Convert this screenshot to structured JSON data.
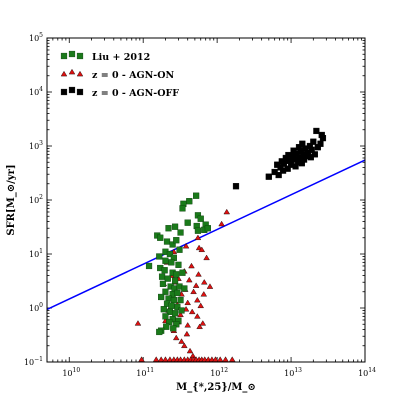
{
  "chart_data": {
    "type": "scatter",
    "xlabel": "M_{*,25}/M_⊙",
    "ylabel": "SFR[M_⊙/yr]",
    "xscale": "log",
    "yscale": "log",
    "xlim": [
      5000000000.0,
      100000000000000.0
    ],
    "ylim": [
      0.1,
      100000
    ],
    "grid": false,
    "legend": "top-left",
    "x_ticks": [
      {
        "value": 10000000000.0,
        "base": "10",
        "exp": "10"
      },
      {
        "value": 100000000000.0,
        "base": "10",
        "exp": "11"
      },
      {
        "value": 1000000000000.0,
        "base": "10",
        "exp": "12"
      },
      {
        "value": 10000000000000.0,
        "base": "10",
        "exp": "13"
      },
      {
        "value": 100000000000000.0,
        "base": "10",
        "exp": "14"
      }
    ],
    "y_ticks": [
      {
        "value": 0.1,
        "base": "10",
        "exp": "−1"
      },
      {
        "value": 1,
        "base": "10",
        "exp": "0"
      },
      {
        "value": 10,
        "base": "10",
        "exp": "1"
      },
      {
        "value": 100,
        "base": "10",
        "exp": "2"
      },
      {
        "value": 1000,
        "base": "10",
        "exp": "3"
      },
      {
        "value": 10000,
        "base": "10",
        "exp": "4"
      },
      {
        "value": 100000,
        "base": "10",
        "exp": "5"
      }
    ],
    "fit_line": {
      "color": "#0000ff",
      "points": [
        [
          5000000000.0,
          0.94
        ],
        [
          100000000000000.0,
          550
        ]
      ]
    },
    "series": [
      {
        "name": "Liu + 2012",
        "marker": "square",
        "color": "#1a7a1a",
        "points": [
          [
            520000000000.0,
            120
          ],
          [
            420000000000.0,
            95
          ],
          [
            350000000000.0,
            85
          ],
          [
            340000000000.0,
            70
          ],
          [
            550000000000.0,
            52
          ],
          [
            600000000000.0,
            45
          ],
          [
            400000000000.0,
            38
          ],
          [
            220000000000.0,
            30
          ],
          [
            270000000000.0,
            32
          ],
          [
            320000000000.0,
            25
          ],
          [
            530000000000.0,
            33
          ],
          [
            550000000000.0,
            27
          ],
          [
            700000000000.0,
            35
          ],
          [
            670000000000.0,
            28
          ],
          [
            750000000000.0,
            30
          ],
          [
            155000000000.0,
            22
          ],
          [
            170000000000.0,
            20
          ],
          [
            210000000000.0,
            17
          ],
          [
            250000000000.0,
            15
          ],
          [
            280000000000.0,
            18
          ],
          [
            310000000000.0,
            12
          ],
          [
            200000000000.0,
            11
          ],
          [
            230000000000.0,
            10
          ],
          [
            165000000000.0,
            9
          ],
          [
            260000000000.0,
            8.5
          ],
          [
            200000000000.0,
            7.5
          ],
          [
            240000000000.0,
            7
          ],
          [
            300000000000.0,
            6.3
          ],
          [
            170000000000.0,
            5.5
          ],
          [
            195000000000.0,
            5
          ],
          [
            250000000000.0,
            4.5
          ],
          [
            280000000000.0,
            4.2
          ],
          [
            340000000000.0,
            4.5
          ],
          [
            180000000000.0,
            3.8
          ],
          [
            215000000000.0,
            3.5
          ],
          [
            270000000000.0,
            3.2
          ],
          [
            185000000000.0,
            2.8
          ],
          [
            235000000000.0,
            2.5
          ],
          [
            265000000000.0,
            2.3
          ],
          [
            310000000000.0,
            2.5
          ],
          [
            360000000000.0,
            2.3
          ],
          [
            200000000000.0,
            2
          ],
          [
            250000000000.0,
            1.8
          ],
          [
            290000000000.0,
            1.9
          ],
          [
            175000000000.0,
            1.6
          ],
          [
            220000000000.0,
            1.5
          ],
          [
            260000000000.0,
            1.4
          ],
          [
            320000000000.0,
            1.4
          ],
          [
            210000000000.0,
            1.2
          ],
          [
            240000000000.0,
            1.1
          ],
          [
            290000000000.0,
            1.05
          ],
          [
            190000000000.0,
            0.95
          ],
          [
            230000000000.0,
            0.85
          ],
          [
            270000000000.0,
            0.8
          ],
          [
            330000000000.0,
            0.9
          ],
          [
            200000000000.0,
            0.7
          ],
          [
            250000000000.0,
            0.62
          ],
          [
            300000000000.0,
            0.58
          ],
          [
            225000000000.0,
            0.55
          ],
          [
            280000000000.0,
            0.5
          ],
          [
            205000000000.0,
            0.45
          ],
          [
            255000000000.0,
            0.42
          ],
          [
            175000000000.0,
            0.38
          ],
          [
            165000000000.0,
            0.36
          ],
          [
            120000000000.0,
            6.0
          ]
        ]
      },
      {
        "name": "z = 0 - AGN-ON",
        "marker": "triangle",
        "color": "#dd1111",
        "points": [
          [
            1350000000000.0,
            60
          ],
          [
            1150000000000.0,
            36
          ],
          [
            550000000000.0,
            20
          ],
          [
            380000000000.0,
            14
          ],
          [
            570000000000.0,
            13
          ],
          [
            620000000000.0,
            12
          ],
          [
            260000000000.0,
            11
          ],
          [
            720000000000.0,
            8.5
          ],
          [
            210000000000.0,
            7
          ],
          [
            450000000000.0,
            6
          ],
          [
            360000000000.0,
            4.8
          ],
          [
            560000000000.0,
            4.2
          ],
          [
            240000000000.0,
            4
          ],
          [
            300000000000.0,
            3.5
          ],
          [
            420000000000.0,
            3.3
          ],
          [
            670000000000.0,
            3.0
          ],
          [
            270000000000.0,
            3.0
          ],
          [
            190000000000.0,
            2.8
          ],
          [
            520000000000.0,
            2.6
          ],
          [
            800000000000.0,
            2.5
          ],
          [
            370000000000.0,
            2.2
          ],
          [
            480000000000.0,
            2.0
          ],
          [
            660000000000.0,
            1.8
          ],
          [
            330000000000.0,
            1.8
          ],
          [
            240000000000.0,
            1.6
          ],
          [
            540000000000.0,
            1.4
          ],
          [
            400000000000.0,
            1.25
          ],
          [
            290000000000.0,
            1.15
          ],
          [
            600000000000.0,
            1.1
          ],
          [
            380000000000.0,
            0.95
          ],
          [
            220000000000.0,
            0.9
          ],
          [
            460000000000.0,
            0.85
          ],
          [
            320000000000.0,
            0.75
          ],
          [
            540000000000.0,
            0.7
          ],
          [
            270000000000.0,
            0.62
          ],
          [
            200000000000.0,
            0.58
          ],
          [
            300000000000.0,
            0.55
          ],
          [
            640000000000.0,
            0.52
          ],
          [
            400000000000.0,
            0.48
          ],
          [
            580000000000.0,
            0.45
          ],
          [
            85000000000.0,
            0.52
          ],
          [
            260000000000.0,
            0.38
          ],
          [
            390000000000.0,
            0.33
          ],
          [
            280000000000.0,
            0.28
          ],
          [
            330000000000.0,
            0.24
          ],
          [
            360000000000.0,
            0.2
          ],
          [
            430000000000.0,
            0.16
          ],
          [
            470000000000.0,
            0.13
          ],
          [
            95000000000.0,
            0.1
          ],
          [
            150000000000.0,
            0.1
          ],
          [
            175000000000.0,
            0.1
          ],
          [
            200000000000.0,
            0.1
          ],
          [
            230000000000.0,
            0.1
          ],
          [
            260000000000.0,
            0.1
          ],
          [
            290000000000.0,
            0.1
          ],
          [
            320000000000.0,
            0.1
          ],
          [
            360000000000.0,
            0.1
          ],
          [
            400000000000.0,
            0.1
          ],
          [
            440000000000.0,
            0.1
          ],
          [
            480000000000.0,
            0.1
          ],
          [
            520000000000.0,
            0.1
          ],
          [
            570000000000.0,
            0.1
          ],
          [
            620000000000.0,
            0.1
          ],
          [
            680000000000.0,
            0.1
          ],
          [
            760000000000.0,
            0.1
          ],
          [
            850000000000.0,
            0.1
          ],
          [
            950000000000.0,
            0.1
          ],
          [
            1100000000000.0,
            0.1
          ],
          [
            1300000000000.0,
            0.1
          ],
          [
            1600000000000.0,
            0.1
          ]
        ]
      },
      {
        "name": "z = 0 - AGN-OFF",
        "marker": "square",
        "color": "#000000",
        "points": [
          [
            1800000000000.0,
            180
          ],
          [
            5000000000000.0,
            270
          ],
          [
            6000000000000.0,
            330
          ],
          [
            6800000000000.0,
            290
          ],
          [
            7200000000000.0,
            400
          ],
          [
            7800000000000.0,
            350
          ],
          [
            8000000000000.0,
            470
          ],
          [
            8500000000000.0,
            600
          ],
          [
            9000000000000.0,
            380
          ],
          [
            9500000000000.0,
            530
          ],
          [
            10000000000000.0,
            450
          ],
          [
            10500000000000.0,
            650
          ],
          [
            11000000000000.0,
            560
          ],
          [
            11500000000000.0,
            420
          ],
          [
            12000000000000.0,
            720
          ],
          [
            12500000000000.0,
            500
          ],
          [
            13000000000000.0,
            600
          ],
          [
            13500000000000.0,
            800
          ],
          [
            14000000000000.0,
            480
          ],
          [
            14500000000000.0,
            700
          ],
          [
            15000000000000.0,
            560
          ],
          [
            15500000000000.0,
            900
          ],
          [
            16000000000000.0,
            650
          ],
          [
            17000000000000.0,
            750
          ],
          [
            18000000000000.0,
            1000
          ],
          [
            18500000000000.0,
            620
          ],
          [
            19000000000000.0,
            850
          ],
          [
            20000000000000.0,
            1200
          ],
          [
            21000000000000.0,
            700
          ],
          [
            23000000000000.0,
            950
          ],
          [
            25000000000000.0,
            1100
          ],
          [
            27000000000000.0,
            1400
          ],
          [
            22000000000000.0,
            1900
          ],
          [
            26000000000000.0,
            1600
          ],
          [
            6500000000000.0,
            450
          ],
          [
            7500000000000.0,
            520
          ],
          [
            9200000000000.0,
            680
          ],
          [
            10800000000000.0,
            820
          ],
          [
            12800000000000.0,
            950
          ],
          [
            14200000000000.0,
            1100
          ]
        ]
      }
    ]
  }
}
